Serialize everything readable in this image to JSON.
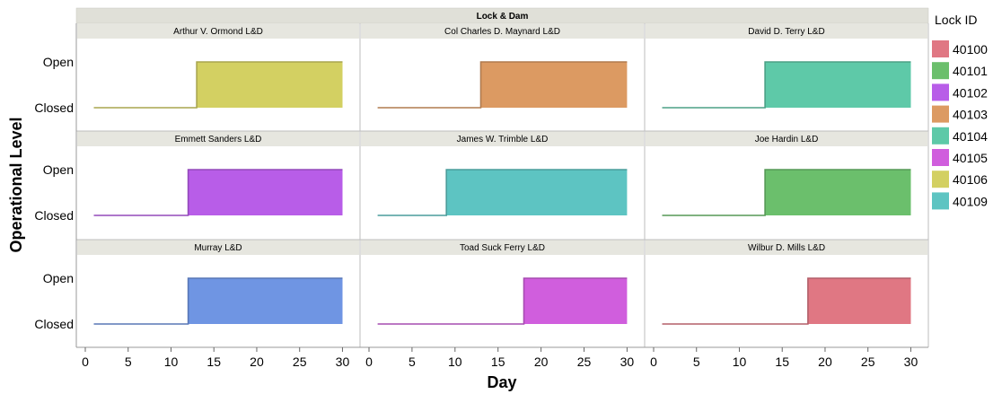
{
  "chart_data": {
    "type": "area",
    "facet_title": "Lock & Dam",
    "xlabel": "Day",
    "ylabel": "Operational Level",
    "xlim": [
      0,
      31
    ],
    "x_ticks": [
      0,
      5,
      10,
      15,
      20,
      25,
      30
    ],
    "y_categories": [
      "Closed",
      "Open"
    ],
    "grid": false,
    "legend": {
      "title": "Lock ID",
      "position": "right"
    },
    "series_colors": {
      "40100": "#e07783",
      "40101": "#6bbf6c",
      "40102": "#b85de8",
      "40103": "#dc9a62",
      "40104": "#5ec9a8",
      "40105": "#d05edd",
      "40106": "#d3d062",
      "40109": "#5dc4c2"
    },
    "panels": [
      {
        "title": "Arthur V. Ormond L&D",
        "lock_id": "40106",
        "x": [
          1,
          13,
          13,
          30
        ],
        "y": [
          "Closed",
          "Closed",
          "Open",
          "Open"
        ]
      },
      {
        "title": "Col Charles D. Maynard L&D",
        "lock_id": "40103",
        "x": [
          1,
          13,
          13,
          30
        ],
        "y": [
          "Closed",
          "Closed",
          "Open",
          "Open"
        ]
      },
      {
        "title": "David D. Terry L&D",
        "lock_id": "40104",
        "x": [
          1,
          13,
          13,
          30
        ],
        "y": [
          "Closed",
          "Closed",
          "Open",
          "Open"
        ]
      },
      {
        "title": "Emmett Sanders L&D",
        "lock_id": "40102",
        "x": [
          1,
          12,
          12,
          30
        ],
        "y": [
          "Closed",
          "Closed",
          "Open",
          "Open"
        ]
      },
      {
        "title": "James W. Trimble L&D",
        "lock_id": "40109",
        "x": [
          1,
          9,
          9,
          30
        ],
        "y": [
          "Closed",
          "Closed",
          "Open",
          "Open"
        ]
      },
      {
        "title": "Joe Hardin L&D",
        "lock_id": "40101",
        "x": [
          1,
          13,
          13,
          30
        ],
        "y": [
          "Closed",
          "Closed",
          "Open",
          "Open"
        ]
      },
      {
        "title": "Murray L&D",
        "lock_id": "40100",
        "color": "#6f95e3",
        "x": [
          1,
          12,
          12,
          30
        ],
        "y": [
          "Closed",
          "Closed",
          "Open",
          "Open"
        ]
      },
      {
        "title": "Toad Suck Ferry L&D",
        "lock_id": "40105",
        "x": [
          1,
          18,
          18,
          30
        ],
        "y": [
          "Closed",
          "Closed",
          "Open",
          "Open"
        ]
      },
      {
        "title": "Wilbur D. Mills L&D",
        "lock_id": "40100",
        "x": [
          1,
          18,
          18,
          30
        ],
        "y": [
          "Closed",
          "Closed",
          "Open",
          "Open"
        ]
      }
    ],
    "legend_items": [
      "40100",
      "40101",
      "40102",
      "40103",
      "40104",
      "40105",
      "40106",
      "40109"
    ]
  }
}
